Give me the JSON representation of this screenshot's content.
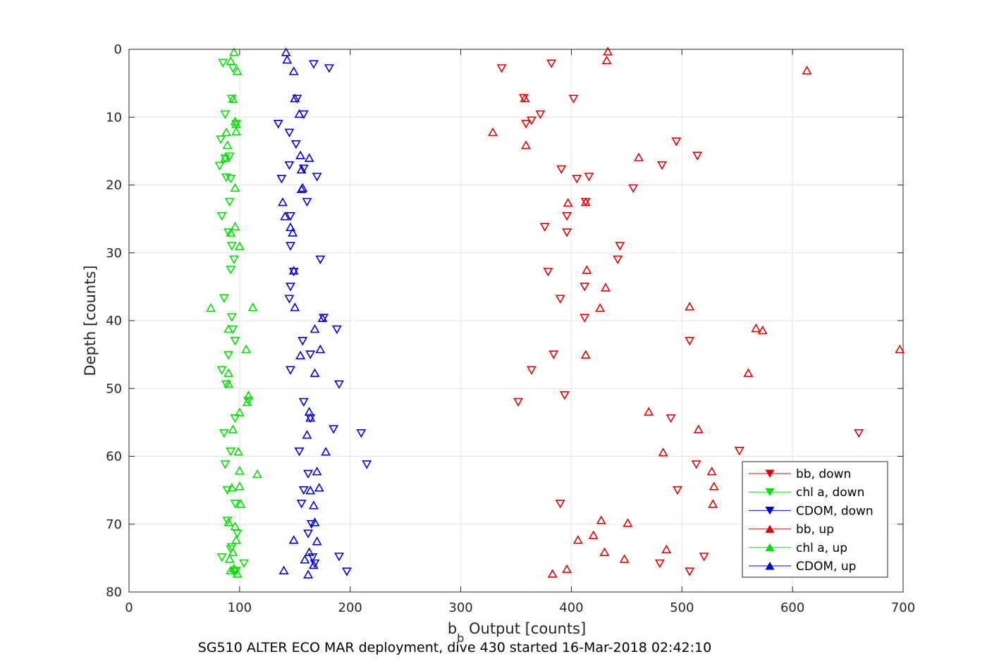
{
  "chart_data": {
    "type": "scatter",
    "title": "",
    "caption": "SG510 ALTER ECO MAR deployment, dive 430 started 16-Mar-2018 02:42:10",
    "xlabel": {
      "main": "b",
      "subscript": "b",
      "rest": " Output [counts]"
    },
    "ylabel": "Depth [counts]",
    "xlim": [
      0,
      700
    ],
    "ylim": [
      0,
      80
    ],
    "y_reversed": true,
    "x_ticks": [
      0,
      100,
      200,
      300,
      400,
      500,
      600,
      700
    ],
    "y_ticks": [
      0,
      10,
      20,
      30,
      40,
      50,
      60,
      70,
      80
    ],
    "grid": true,
    "legend_position": "bottom-right",
    "series": [
      {
        "name": "bb, down",
        "color": "#e00000",
        "marker": "triangle-down",
        "x": [
          382,
          337,
          402,
          357,
          372,
          359,
          364,
          495,
          514,
          482,
          391,
          416,
          405,
          456,
          413,
          396,
          376,
          396,
          444,
          442,
          379,
          412,
          390,
          412,
          507,
          384,
          364,
          352,
          394,
          490,
          660,
          552,
          513,
          496,
          390,
          480,
          520,
          507
        ],
        "y": [
          2.1,
          2.8,
          7.3,
          7.2,
          9.6,
          11,
          10.5,
          13.6,
          15.7,
          17.1,
          17.7,
          18.8,
          19.1,
          20.5,
          22.5,
          24.6,
          26.2,
          27,
          29,
          31,
          32.8,
          35,
          36.8,
          39.6,
          43,
          45,
          47.3,
          52,
          51,
          54.4,
          56.6,
          59.2,
          61.2,
          65,
          67,
          75.8,
          74.8,
          77
        ]
      },
      {
        "name": "chl a, down",
        "color": "#00e000",
        "marker": "triangle-down",
        "x": [
          85,
          94,
          93,
          87,
          97,
          83,
          87,
          91,
          82,
          88,
          92,
          91,
          84,
          90,
          93,
          95,
          92,
          86,
          93,
          94,
          96,
          90,
          84,
          88,
          108,
          96,
          86,
          92,
          87,
          89,
          96,
          89,
          98,
          84,
          97,
          95,
          92,
          93,
          104
        ],
        "y": [
          2,
          2.8,
          7.3,
          9.6,
          11,
          13.3,
          16.1,
          15.8,
          17.2,
          18.9,
          19.1,
          22.5,
          24.6,
          27,
          29,
          31,
          32.5,
          36.7,
          39.5,
          41.3,
          43,
          45.1,
          47.3,
          49.4,
          51.8,
          54.4,
          56.6,
          59.3,
          61.2,
          65,
          67,
          69.5,
          71.4,
          74.9,
          76.9,
          77,
          73.7,
          73.4,
          75.8
        ]
      },
      {
        "name": "CDOM, down",
        "color": "#0000d0",
        "marker": "triangle-down",
        "x": [
          167,
          181,
          152,
          158,
          135,
          145,
          151,
          145,
          158,
          170,
          138,
          161,
          146,
          146,
          173,
          149,
          146,
          145,
          176,
          188,
          157,
          164,
          146,
          190,
          158,
          164,
          185,
          210,
          154,
          215,
          162,
          158,
          156,
          165,
          162,
          166,
          190,
          197,
          168
        ],
        "y": [
          2.2,
          2.8,
          7.3,
          9.6,
          11,
          12.3,
          14,
          17.1,
          17.6,
          18.8,
          19.1,
          22.5,
          24.6,
          29,
          31,
          32.8,
          35,
          36.8,
          39.6,
          41.3,
          43,
          45,
          47.3,
          49.4,
          52,
          54.4,
          56,
          56.6,
          59.3,
          61.2,
          62.6,
          65,
          67,
          70,
          71.4,
          74.9,
          74.8,
          77,
          75.8
        ]
      },
      {
        "name": "bb, up",
        "color": "#e00000",
        "marker": "triangle-up",
        "x": [
          433,
          432,
          613,
          329,
          359,
          461,
          358,
          413,
          397,
          414,
          431,
          426,
          507,
          567,
          573,
          413,
          560,
          470,
          515,
          483,
          527,
          529,
          528,
          427,
          451,
          420,
          406,
          486,
          430,
          448,
          396,
          383
        ],
        "y": [
          0.3,
          1.6,
          3.1,
          12.2,
          14.1,
          15.9,
          7.2,
          22.5,
          22.6,
          32.5,
          35.1,
          38.1,
          37.9,
          41.1,
          41.4,
          45,
          47.7,
          53.4,
          56,
          59.4,
          62.2,
          64.4,
          67,
          69.4,
          69.8,
          71.6,
          72.3,
          73.7,
          74.1,
          75.1,
          76.6,
          77.3
        ],
        "x_extra": [
          697
        ],
        "y_extra": [
          44.2
        ]
      },
      {
        "name": "chl a, up",
        "color": "#00e000",
        "marker": "triangle-up",
        "x": [
          95,
          92,
          98,
          94,
          96,
          97,
          97,
          89,
          96,
          88,
          87,
          96,
          92,
          100,
          112,
          74,
          90,
          106,
          90,
          90,
          108,
          107,
          100,
          94,
          99,
          100,
          116,
          100,
          93,
          101,
          90,
          96,
          97,
          94,
          91,
          92,
          98,
          95
        ],
        "y": [
          0.4,
          1.7,
          3.2,
          7.3,
          10.6,
          11,
          12.1,
          14.1,
          20.4,
          12.2,
          16,
          26.1,
          27,
          29,
          38,
          38.1,
          41.2,
          44.2,
          47.7,
          49.3,
          51,
          52,
          53.5,
          56,
          59.3,
          62.1,
          62.6,
          64.4,
          64.6,
          67,
          69.7,
          70.3,
          72.3,
          74.1,
          75.1,
          76.8,
          77.3,
          76.5
        ]
      },
      {
        "name": "CDOM, up",
        "color": "#0000d0",
        "marker": "triangle-up",
        "x": [
          142,
          143,
          149,
          150,
          154,
          155,
          163,
          156,
          157,
          156,
          139,
          141,
          146,
          148,
          149,
          150,
          168,
          175,
          155,
          173,
          163,
          164,
          168,
          161,
          178,
          170,
          172,
          164,
          167,
          168,
          149,
          163,
          159,
          140,
          162,
          170,
          167
        ],
        "y": [
          0.4,
          1.5,
          3.2,
          7.2,
          9.5,
          15.6,
          16,
          17.7,
          20.4,
          20.6,
          22.5,
          24.6,
          26.2,
          27,
          32.6,
          38,
          41.2,
          39.6,
          45.1,
          44.2,
          53.4,
          54.3,
          47.7,
          56.8,
          59.3,
          62.2,
          64.6,
          65,
          67.2,
          69.7,
          72.3,
          74.1,
          75.2,
          76.8,
          77.4,
          72.5,
          76
        ]
      }
    ]
  }
}
